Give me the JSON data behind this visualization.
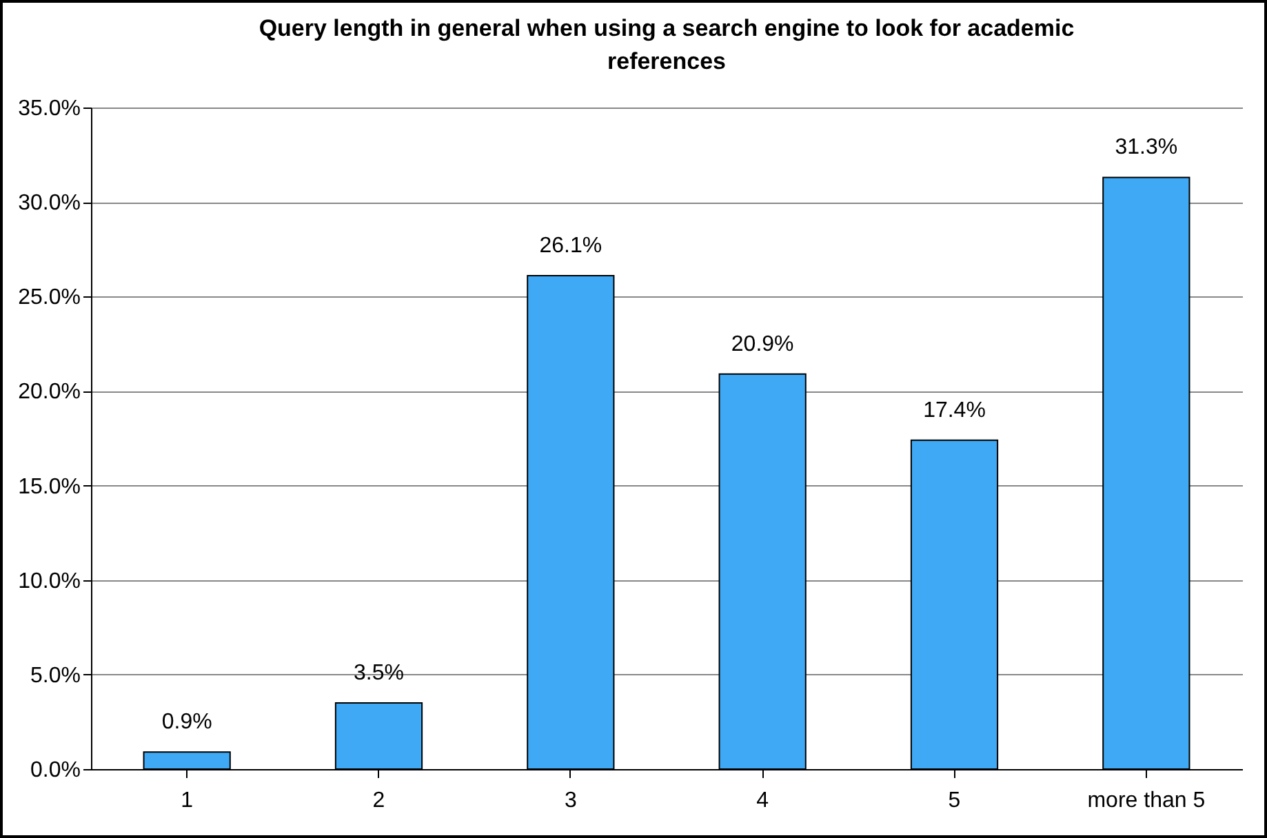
{
  "chart_data": {
    "type": "bar",
    "title": "Query length in general when using a search engine to look for academic references",
    "categories": [
      "1",
      "2",
      "3",
      "4",
      "5",
      "more than 5"
    ],
    "values": [
      0.9,
      3.5,
      26.1,
      20.9,
      17.4,
      31.3
    ],
    "value_labels": [
      "0.9%",
      "3.5%",
      "26.1%",
      "20.9%",
      "17.4%",
      "31.3%"
    ],
    "color": "#3fa9f5",
    "ylim": [
      0,
      35
    ],
    "yticks": [
      {
        "value": 0,
        "label": "0.0%"
      },
      {
        "value": 5,
        "label": "5.0%"
      },
      {
        "value": 10,
        "label": "10.0%"
      },
      {
        "value": 15,
        "label": "15.0%"
      },
      {
        "value": 20,
        "label": "20.0%"
      },
      {
        "value": 25,
        "label": "25.0%"
      },
      {
        "value": 30,
        "label": "30.0%"
      },
      {
        "value": 35,
        "label": "35.0%"
      }
    ],
    "grid": "y"
  }
}
